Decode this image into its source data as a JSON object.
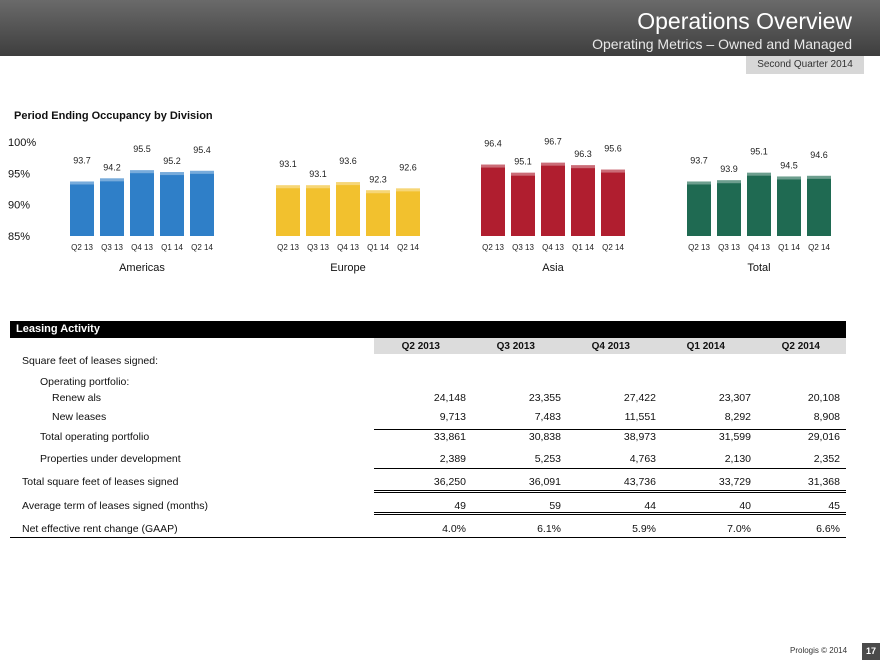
{
  "header": {
    "title": "Operations Overview",
    "subtitle": "Operating Metrics – Owned and Managed",
    "quarter": "Second Quarter 2014"
  },
  "occupancy": {
    "section_label": "Period Ending Occupancy by Division"
  },
  "chart_data": {
    "type": "bar",
    "title": "",
    "ylim": [
      85,
      100
    ],
    "yticks": [
      "100%",
      "95%",
      "90%",
      "85%"
    ],
    "yticks_values": [
      100,
      95,
      90,
      85
    ],
    "categories": [
      "Q2 13",
      "Q3 13",
      "Q4 13",
      "Q1 14",
      "Q2 14"
    ],
    "groups": [
      {
        "name": "Americas",
        "color": "#2f7fc8",
        "values": [
          93.7,
          94.2,
          95.5,
          95.2,
          95.4
        ]
      },
      {
        "name": "Europe",
        "color": "#f2c12e",
        "values": [
          93.1,
          93.1,
          93.6,
          92.3,
          92.6
        ]
      },
      {
        "name": "Asia",
        "color": "#b01e2f",
        "values": [
          96.4,
          95.1,
          96.7,
          96.3,
          95.6
        ]
      },
      {
        "name": "Total",
        "color": "#1f6a52",
        "values": [
          93.7,
          93.9,
          95.1,
          94.5,
          94.6
        ]
      }
    ]
  },
  "leasing": {
    "title": "Leasing Activity",
    "columns": [
      "Q2 2013",
      "Q3 2013",
      "Q4 2013",
      "Q1 2014",
      "Q2 2014"
    ],
    "rows": {
      "sqft_label": "Square feet of leases signed:",
      "operating_label": "Operating portfolio:",
      "renewals": {
        "label": "Renew als",
        "values": [
          "24,148",
          "23,355",
          "27,422",
          "23,307",
          "20,108"
        ]
      },
      "new_leases": {
        "label": "New  leases",
        "values": [
          "9,713",
          "7,483",
          "11,551",
          "8,292",
          "8,908"
        ]
      },
      "total_operating": {
        "label": "Total operating portfolio",
        "values": [
          "33,861",
          "30,838",
          "38,973",
          "31,599",
          "29,016"
        ]
      },
      "under_development": {
        "label": "Properties under development",
        "values": [
          "2,389",
          "5,253",
          "4,763",
          "2,130",
          "2,352"
        ]
      },
      "total_sqft": {
        "label": "Total square feet of leases signed",
        "values": [
          "36,250",
          "36,091",
          "43,736",
          "33,729",
          "31,368"
        ]
      },
      "avg_term": {
        "label": "Average term of leases signed (months)",
        "values": [
          "49",
          "59",
          "44",
          "40",
          "45"
        ]
      },
      "net_rent": {
        "label": "Net effective rent change (GAAP)",
        "values": [
          "4.0%",
          "6.1%",
          "5.9%",
          "7.0%",
          "6.6%"
        ]
      }
    }
  },
  "footer": {
    "copyright": "Prologis © 2014",
    "page": "17"
  }
}
